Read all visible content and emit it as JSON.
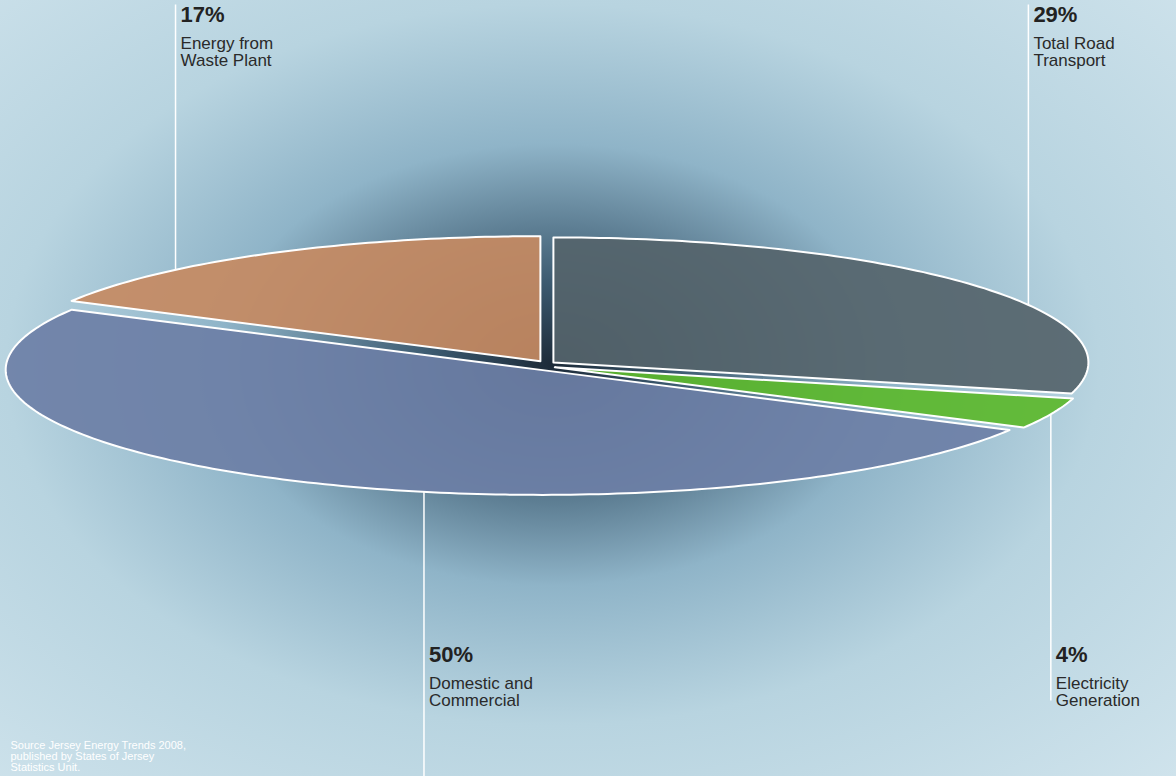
{
  "chart_data": {
    "type": "pie",
    "categories": [
      "Total Road Transport",
      "Electricity Generation",
      "Domestic and Commercial",
      "Energy from Waste Plant"
    ],
    "values": [
      29,
      4,
      50,
      17
    ],
    "value_labels": [
      "29%",
      "4%",
      "50%",
      "17%"
    ],
    "colors": [
      "#55646b",
      "#5cb82c",
      "#6d7fa6",
      "#c68a62"
    ],
    "data_labels": true,
    "tick_labels": false,
    "caption": "Source Jersey Energy Trends 2008, published by States of Jersey Statistics Unit."
  }
}
